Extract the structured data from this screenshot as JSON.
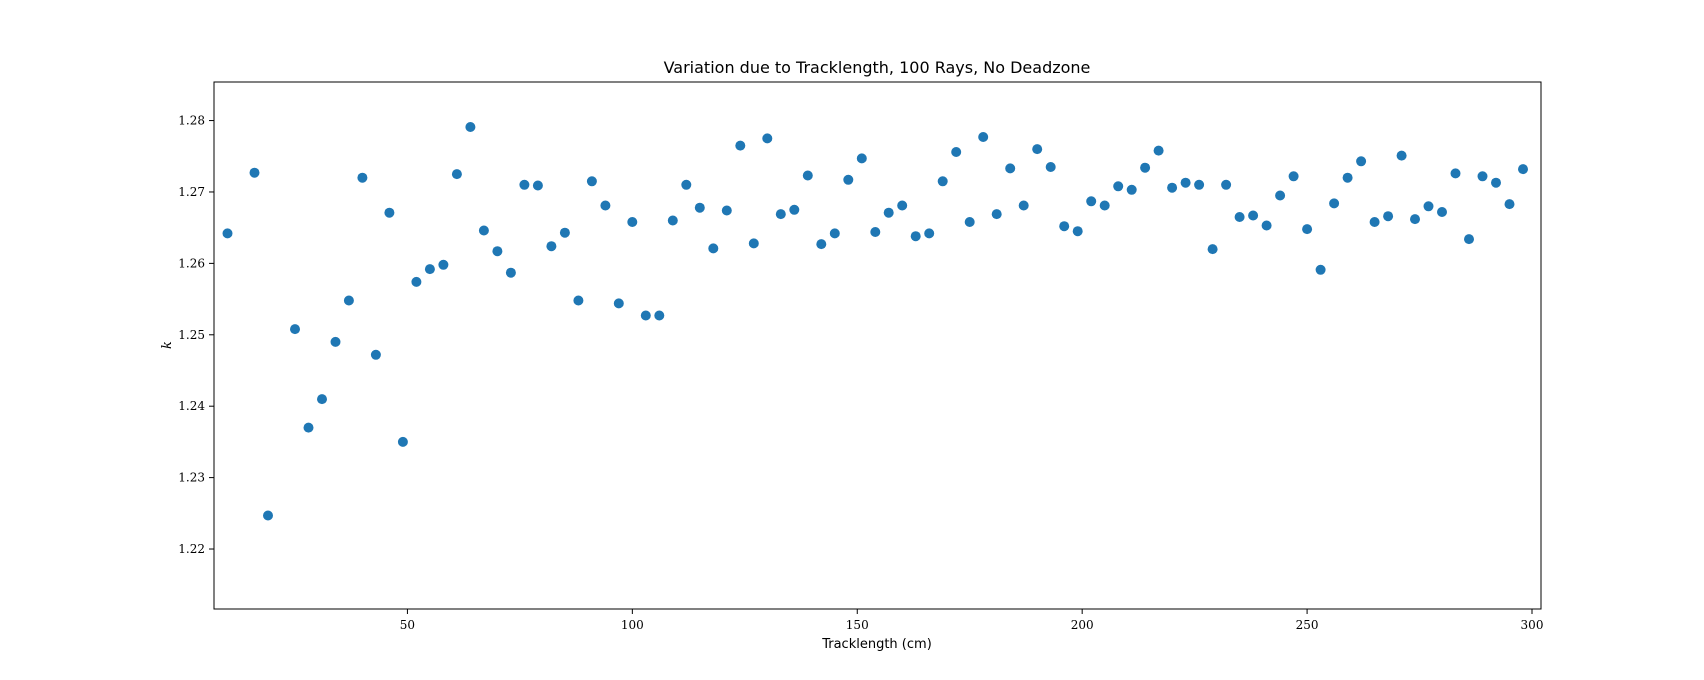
{
  "chart_data": {
    "type": "scatter",
    "title": "Variation due to Tracklength, 100 Rays, No Deadzone",
    "xlabel": "Tracklength (cm)",
    "ylabel": "k",
    "xlim": [
      7,
      302
    ],
    "ylim": [
      1.2116,
      1.2854
    ],
    "xticks": [
      50,
      100,
      150,
      200,
      250,
      300
    ],
    "yticks": [
      1.22,
      1.23,
      1.24,
      1.25,
      1.26,
      1.27,
      1.28
    ],
    "marker_color": "#1f77b4",
    "grid": false,
    "legend": "none",
    "points": [
      [
        10,
        1.2642
      ],
      [
        16,
        1.2727
      ],
      [
        19,
        1.2247
      ],
      [
        25,
        1.2508
      ],
      [
        28,
        1.237
      ],
      [
        31,
        1.241
      ],
      [
        34,
        1.249
      ],
      [
        37,
        1.2548
      ],
      [
        40,
        1.272
      ],
      [
        43,
        1.2472
      ],
      [
        46,
        1.2671
      ],
      [
        49,
        1.235
      ],
      [
        52,
        1.2574
      ],
      [
        55,
        1.2592
      ],
      [
        58,
        1.2598
      ],
      [
        61,
        1.2725
      ],
      [
        64,
        1.2791
      ],
      [
        67,
        1.2646
      ],
      [
        70,
        1.2617
      ],
      [
        73,
        1.2587
      ],
      [
        76,
        1.271
      ],
      [
        79,
        1.2709
      ],
      [
        82,
        1.2624
      ],
      [
        85,
        1.2643
      ],
      [
        88,
        1.2548
      ],
      [
        91,
        1.2715
      ],
      [
        94,
        1.2681
      ],
      [
        97,
        1.2544
      ],
      [
        100,
        1.2658
      ],
      [
        103,
        1.2527
      ],
      [
        106,
        1.2527
      ],
      [
        109,
        1.266
      ],
      [
        112,
        1.271
      ],
      [
        115,
        1.2678
      ],
      [
        118,
        1.2621
      ],
      [
        121,
        1.2674
      ],
      [
        124,
        1.2765
      ],
      [
        127,
        1.2628
      ],
      [
        130,
        1.2775
      ],
      [
        133,
        1.2669
      ],
      [
        136,
        1.2675
      ],
      [
        139,
        1.2723
      ],
      [
        142,
        1.2627
      ],
      [
        145,
        1.2642
      ],
      [
        148,
        1.2717
      ],
      [
        151,
        1.2747
      ],
      [
        154,
        1.2644
      ],
      [
        157,
        1.2671
      ],
      [
        160,
        1.2681
      ],
      [
        163,
        1.2638
      ],
      [
        166,
        1.2642
      ],
      [
        169,
        1.2715
      ],
      [
        172,
        1.2756
      ],
      [
        175,
        1.2658
      ],
      [
        178,
        1.2777
      ],
      [
        181,
        1.2669
      ],
      [
        184,
        1.2733
      ],
      [
        187,
        1.2681
      ],
      [
        190,
        1.276
      ],
      [
        193,
        1.2735
      ],
      [
        196,
        1.2652
      ],
      [
        199,
        1.2645
      ],
      [
        202,
        1.2687
      ],
      [
        205,
        1.2681
      ],
      [
        208,
        1.2708
      ],
      [
        211,
        1.2703
      ],
      [
        214,
        1.2734
      ],
      [
        217,
        1.2758
      ],
      [
        220,
        1.2706
      ],
      [
        223,
        1.2713
      ],
      [
        226,
        1.271
      ],
      [
        229,
        1.262
      ],
      [
        232,
        1.271
      ],
      [
        235,
        1.2665
      ],
      [
        238,
        1.2667
      ],
      [
        241,
        1.2653
      ],
      [
        244,
        1.2695
      ],
      [
        247,
        1.2722
      ],
      [
        250,
        1.2648
      ],
      [
        253,
        1.2591
      ],
      [
        256,
        1.2684
      ],
      [
        259,
        1.272
      ],
      [
        262,
        1.2743
      ],
      [
        265,
        1.2658
      ],
      [
        268,
        1.2666
      ],
      [
        271,
        1.2751
      ],
      [
        274,
        1.2662
      ],
      [
        277,
        1.268
      ],
      [
        280,
        1.2672
      ],
      [
        283,
        1.2726
      ],
      [
        286,
        1.2634
      ],
      [
        289,
        1.2722
      ],
      [
        292,
        1.2713
      ],
      [
        295,
        1.2683
      ],
      [
        298,
        1.2732
      ]
    ]
  }
}
